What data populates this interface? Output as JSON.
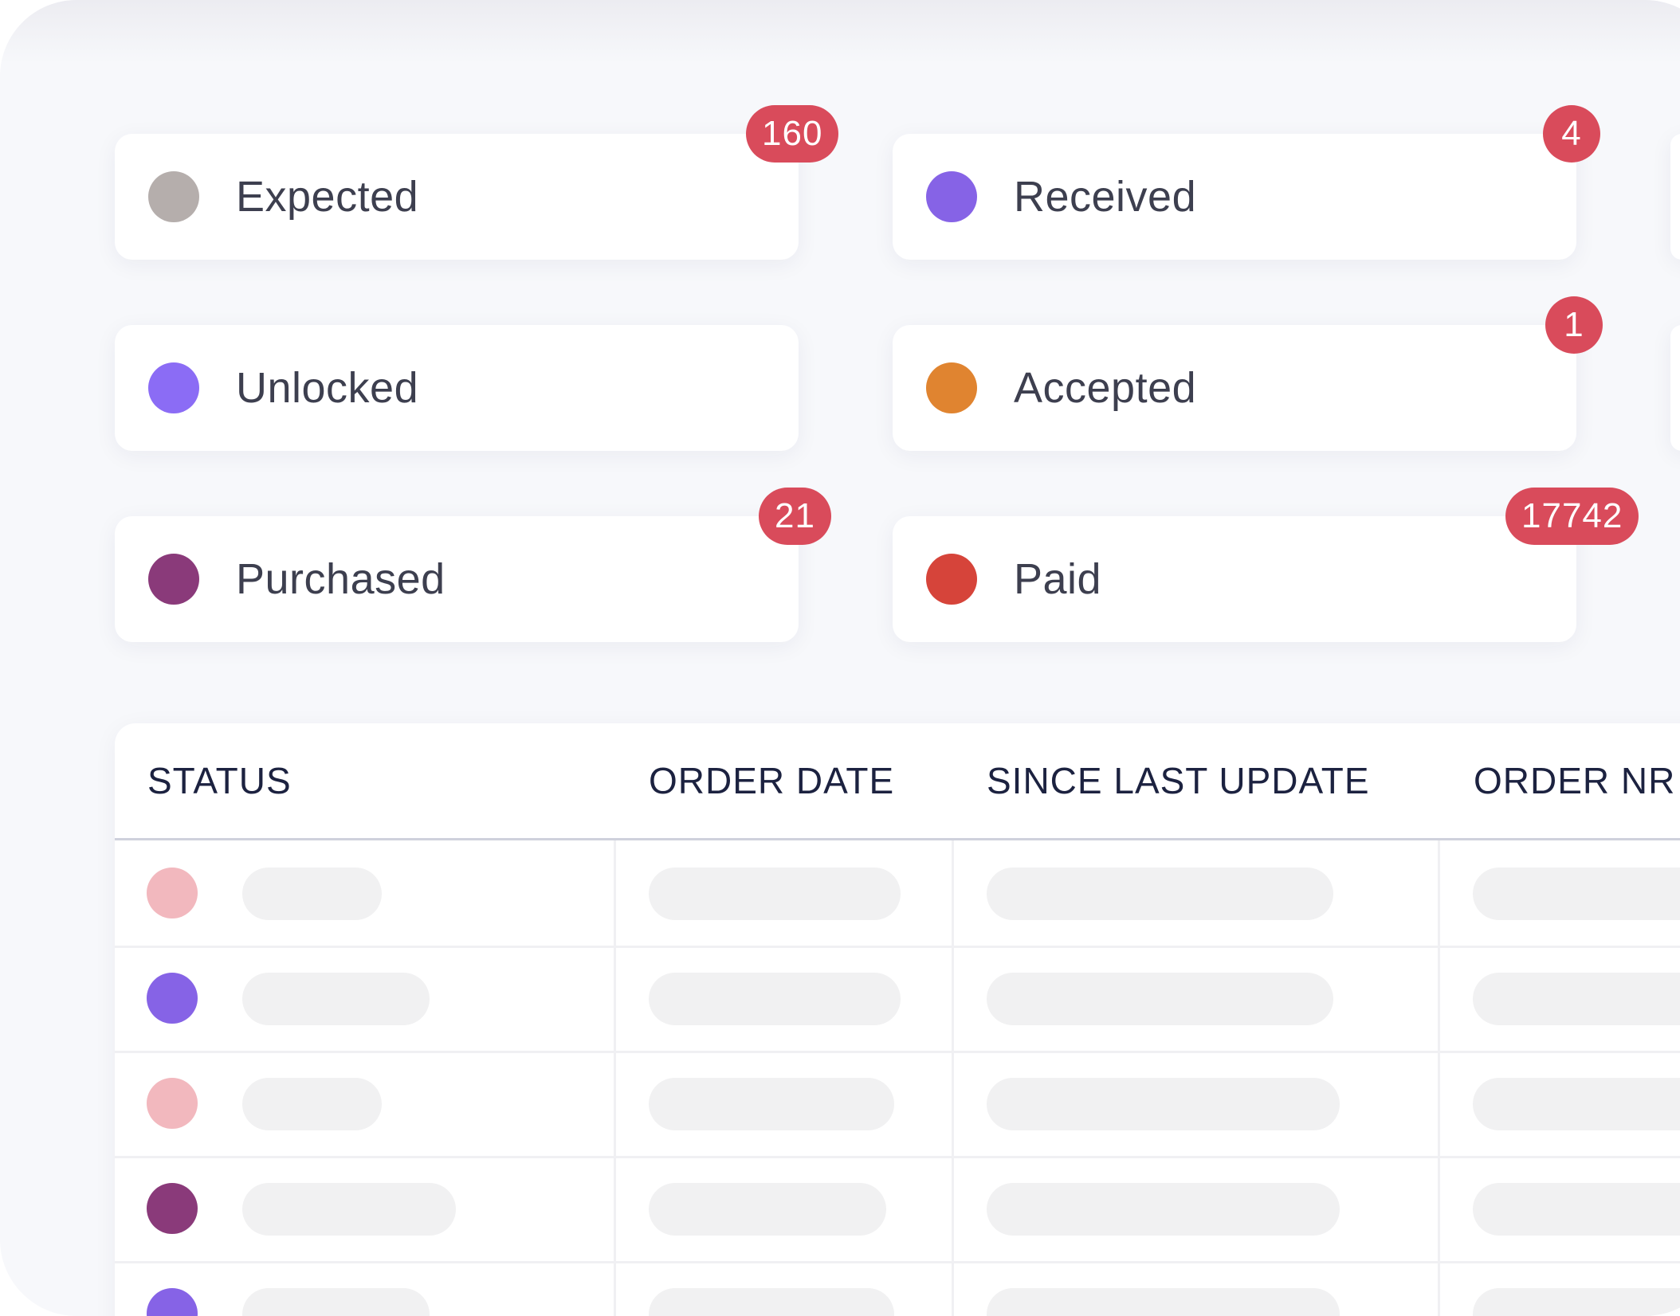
{
  "status_cards": [
    {
      "label": "Expected",
      "color": "#b5aeac",
      "badge": "160"
    },
    {
      "label": "Received",
      "color": "#8663e6",
      "badge": "4"
    },
    {
      "label": "Unlocked",
      "color": "#8b6cf5",
      "badge": ""
    },
    {
      "label": "Accepted",
      "color": "#e08430",
      "badge": "1"
    },
    {
      "label": "Purchased",
      "color": "#8a3a7a",
      "badge": "21"
    },
    {
      "label": "Paid",
      "color": "#d6443a",
      "badge": "17742"
    }
  ],
  "table": {
    "columns": [
      "STATUS",
      "ORDER DATE",
      "SINCE LAST UPDATE",
      "ORDER NR"
    ],
    "rows": [
      {
        "status_color": "#f2b8be"
      },
      {
        "status_color": "#8663e6"
      },
      {
        "status_color": "#f2b8be"
      },
      {
        "status_color": "#8a3a7a"
      },
      {
        "status_color": "#8663e6"
      }
    ]
  }
}
